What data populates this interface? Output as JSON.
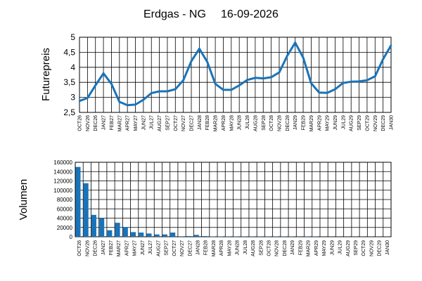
{
  "title": "Erdgas - NG",
  "date": "16-09-2026",
  "chart_data": [
    {
      "type": "line",
      "ylabel": "Futurepreis",
      "ylim": [
        2.5,
        5
      ],
      "yticks": [
        "2,5",
        "3",
        "3,5",
        "4",
        "4,5",
        "5"
      ],
      "grid": true,
      "color": "#1a73b8",
      "categories": [
        "OCT26",
        "NOV26",
        "DEC26",
        "JAN27",
        "FEB27",
        "MAR27",
        "APR27",
        "MAY27",
        "JUN27",
        "JUL27",
        "AUG27",
        "SEP27",
        "OCT27",
        "NOV27",
        "DEC27",
        "JAN28",
        "FEB28",
        "MAR28",
        "APR28",
        "MAY28",
        "JUN28",
        "JUL28",
        "AUG28",
        "SEP28",
        "OCT28",
        "NOV28",
        "DEC28",
        "JAN29",
        "FEB29",
        "MAR29",
        "APR29",
        "MAY29",
        "JUN29",
        "JUL29",
        "AUG29",
        "SEP29",
        "OCT29",
        "NOV29",
        "DEC29",
        "JAN30"
      ],
      "values": [
        2.88,
        2.98,
        3.4,
        3.8,
        3.45,
        2.85,
        2.74,
        2.76,
        2.92,
        3.14,
        3.2,
        3.2,
        3.27,
        3.57,
        4.2,
        4.62,
        4.18,
        3.45,
        3.25,
        3.25,
        3.4,
        3.58,
        3.65,
        3.63,
        3.67,
        3.83,
        4.38,
        4.82,
        4.32,
        3.47,
        3.16,
        3.15,
        3.27,
        3.48,
        3.52,
        3.53,
        3.57,
        3.7,
        4.27,
        4.73
      ]
    },
    {
      "type": "bar",
      "ylabel": "Volumen",
      "ylim": [
        0,
        160000
      ],
      "yticks": [
        "0",
        "20000",
        "40000",
        "60000",
        "80000",
        "100000",
        "120000",
        "140000",
        "160000"
      ],
      "grid": true,
      "color": "#1a73b8",
      "categories": [
        "OCT26",
        "NOV26",
        "DEC26",
        "JAN27",
        "FEB27",
        "MAR27",
        "APR27",
        "MAY27",
        "JUN27",
        "JUL27",
        "AUG27",
        "SEP27",
        "OCT27",
        "NOV27",
        "DEC27",
        "JAN28",
        "FEB28",
        "MAR28",
        "APR28",
        "MAY28",
        "JUN28",
        "JUL28",
        "AUG28",
        "SEP28",
        "OCT28",
        "NOV28",
        "DEC28",
        "JAN29",
        "FEB29",
        "MAR29",
        "APR29",
        "MAY29",
        "JUN29",
        "JUL29",
        "AUG29",
        "SEP29",
        "OCT29",
        "NOV29",
        "DEC29",
        "JAN30"
      ],
      "values": [
        150000,
        115000,
        47000,
        40000,
        14000,
        30000,
        21000,
        10000,
        9000,
        7000,
        5000,
        5000,
        9000,
        1000,
        1500,
        4000,
        1500,
        800,
        700,
        500,
        600,
        500,
        500,
        500,
        500,
        500,
        500,
        500,
        300,
        500,
        500,
        300,
        300,
        300,
        300,
        300,
        300,
        300,
        300,
        300
      ]
    }
  ]
}
